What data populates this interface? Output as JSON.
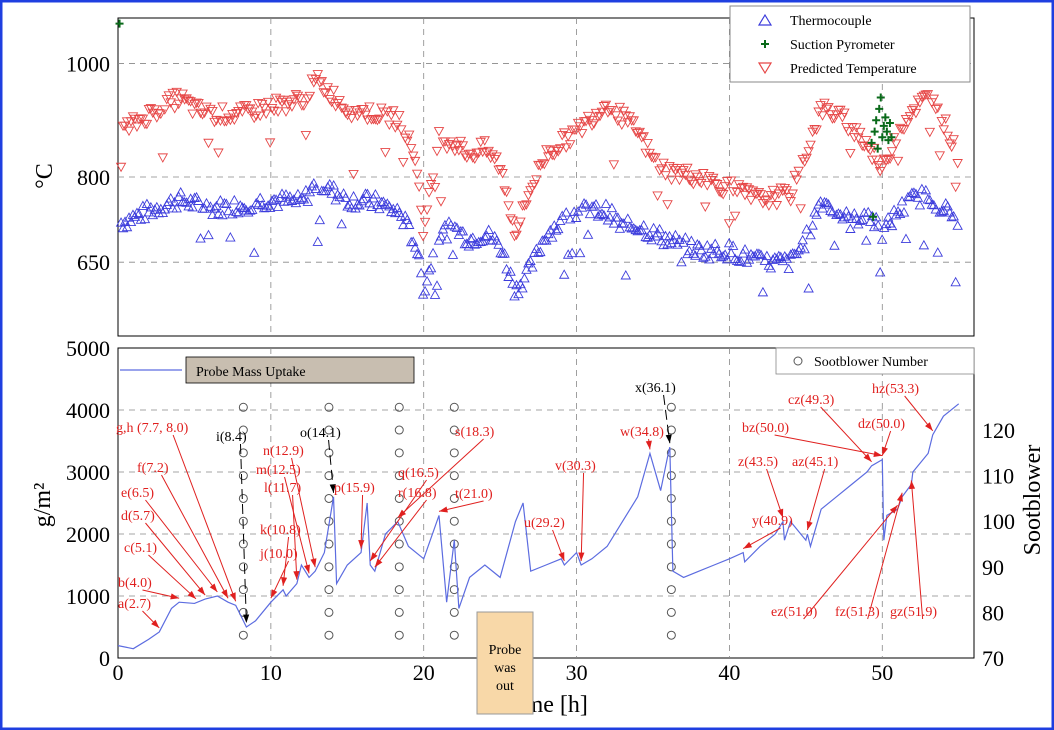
{
  "colors": {
    "frame": "#1f3fe0",
    "thermocouple": "#3c3cdc",
    "pyrometer": "#0a6a1a",
    "predicted": "#e64646",
    "mass": "#5c6ce0",
    "annotation_red": "#e0201f",
    "annotation_black": "#000000",
    "probe_box": "#f8d8a8",
    "legend_box": "#c8beb0",
    "grid": "#888888"
  },
  "chart_data": [
    {
      "type": "scatter",
      "panel": "top",
      "ylabel": "°C",
      "xlim": [
        0,
        56
      ],
      "ylim": [
        520,
        1080
      ],
      "yticks": [
        650,
        800,
        1000
      ],
      "xticks": [
        10,
        20,
        30,
        40,
        50
      ],
      "grid": true,
      "legend_position": "top-right",
      "series": [
        {
          "name": "Thermocouple",
          "marker": "triangle-up",
          "trend": [
            [
              0.2,
              720
            ],
            [
              2,
              740
            ],
            [
              4,
              760
            ],
            [
              6,
              745
            ],
            [
              8,
              750
            ],
            [
              10,
              760
            ],
            [
              12,
              755
            ],
            [
              13,
              790
            ],
            [
              15,
              760
            ],
            [
              17,
              755
            ],
            [
              18.5,
              735
            ],
            [
              19.5,
              680
            ],
            [
              20,
              600
            ],
            [
              21,
              700
            ],
            [
              22,
              710
            ],
            [
              23,
              690
            ],
            [
              24,
              700
            ],
            [
              25,
              680
            ],
            [
              26,
              600
            ],
            [
              27,
              640
            ],
            [
              28,
              700
            ],
            [
              30,
              740
            ],
            [
              32,
              740
            ],
            [
              33,
              710
            ],
            [
              34,
              715
            ],
            [
              35,
              700
            ],
            [
              36,
              690
            ],
            [
              37,
              680
            ],
            [
              38,
              670
            ],
            [
              40,
              670
            ],
            [
              42,
              650
            ],
            [
              44,
              650
            ],
            [
              45,
              690
            ],
            [
              46,
              760
            ],
            [
              47,
              740
            ],
            [
              48,
              720
            ],
            [
              49,
              740
            ],
            [
              50,
              700
            ],
            [
              51,
              740
            ],
            [
              52,
              760
            ],
            [
              53,
              770
            ],
            [
              54,
              745
            ],
            [
              55,
              720
            ]
          ]
        },
        {
          "name": "Suction Pyrometer",
          "marker": "plus",
          "points": [
            [
              0.1,
              1070
            ],
            [
              49.3,
              860
            ],
            [
              49.5,
              880
            ],
            [
              49.6,
              900
            ],
            [
              49.8,
              920
            ],
            [
              49.9,
              940
            ],
            [
              50.0,
              870
            ],
            [
              50.1,
              890
            ],
            [
              50.2,
              905
            ],
            [
              50.3,
              880
            ],
            [
              50.4,
              865
            ],
            [
              50.5,
              895
            ],
            [
              49.7,
              850
            ],
            [
              50.6,
              870
            ],
            [
              49.4,
              730
            ]
          ]
        },
        {
          "name": "Predicted Temperature",
          "marker": "triangle-down",
          "trend": [
            [
              0.2,
              880
            ],
            [
              2,
              910
            ],
            [
              4,
              940
            ],
            [
              5,
              920
            ],
            [
              6,
              910
            ],
            [
              8,
              910
            ],
            [
              10,
              925
            ],
            [
              12,
              935
            ],
            [
              13,
              970
            ],
            [
              15,
              920
            ],
            [
              17,
              910
            ],
            [
              18.5,
              900
            ],
            [
              19.5,
              830
            ],
            [
              20,
              700
            ],
            [
              21,
              870
            ],
            [
              22,
              860
            ],
            [
              23,
              840
            ],
            [
              24,
              850
            ],
            [
              25,
              820
            ],
            [
              26,
              700
            ],
            [
              27,
              780
            ],
            [
              28,
              840
            ],
            [
              30,
              880
            ],
            [
              32,
              930
            ],
            [
              34,
              880
            ],
            [
              35,
              830
            ],
            [
              36,
              810
            ],
            [
              38,
              800
            ],
            [
              40,
              780
            ],
            [
              42,
              760
            ],
            [
              44,
              770
            ],
            [
              45,
              840
            ],
            [
              46,
              920
            ],
            [
              47,
              910
            ],
            [
              48,
              890
            ],
            [
              49,
              860
            ],
            [
              50,
              810
            ],
            [
              51,
              880
            ],
            [
              52,
              920
            ],
            [
              53,
              940
            ],
            [
              54,
              900
            ],
            [
              55,
              830
            ]
          ]
        }
      ]
    },
    {
      "type": "line",
      "panel": "bottom",
      "ylabel": "g/m²",
      "y2label": "Sootblower",
      "xlabel": "Time [h]",
      "xlim": [
        0,
        56
      ],
      "ylim": [
        0,
        5000
      ],
      "y2lim": [
        70,
        138
      ],
      "yticks": [
        0,
        1000,
        2000,
        3000,
        4000,
        5000
      ],
      "y2ticks": [
        70,
        80,
        90,
        100,
        110,
        120
      ],
      "xticks": [
        0,
        10,
        20,
        30,
        40,
        50
      ],
      "grid": true,
      "series": [
        {
          "name": "Probe Mass Uptake",
          "x": [
            0,
            1,
            2,
            2.7,
            3.5,
            4,
            5,
            5.7,
            6.5,
            7.2,
            7.7,
            8,
            8.4,
            9,
            10,
            10.8,
            11,
            11.7,
            12,
            12.5,
            12.9,
            13.5,
            14.1,
            14.3,
            15,
            15.9,
            16.3,
            16.5,
            16.8,
            17.5,
            18.3,
            19,
            20,
            21,
            21.5,
            22,
            22.3,
            23,
            24,
            25,
            26,
            26.5,
            27,
            28,
            29,
            29.2,
            30,
            30.3,
            31,
            32,
            33,
            34,
            34.8,
            35.5,
            36,
            36.1,
            36.3,
            37,
            38,
            39,
            40,
            40.9,
            41,
            42,
            43,
            43.5,
            43.6,
            44,
            45,
            45.1,
            45.3,
            46,
            47,
            48,
            49,
            49.3,
            50,
            50.1,
            50.3,
            51,
            51.3,
            51.9,
            52,
            53,
            53.3,
            54,
            55
          ],
          "values": [
            200,
            150,
            300,
            420,
            800,
            900,
            880,
            950,
            1000,
            900,
            850,
            700,
            500,
            600,
            900,
            1100,
            1000,
            1200,
            1500,
            1300,
            1400,
            1700,
            2600,
            1200,
            1500,
            1700,
            2500,
            1500,
            1400,
            2000,
            2200,
            1800,
            1600,
            2300,
            900,
            1900,
            800,
            1300,
            1500,
            1300,
            2200,
            2500,
            1400,
            1500,
            1600,
            1500,
            1700,
            1500,
            1600,
            1800,
            2200,
            2600,
            3300,
            2700,
            3300,
            3400,
            1400,
            1300,
            1400,
            1500,
            1600,
            1700,
            1550,
            1800,
            2000,
            2200,
            1900,
            2200,
            1900,
            2000,
            1800,
            2400,
            2600,
            2800,
            3000,
            3100,
            3200,
            1900,
            2300,
            2400,
            2600,
            2800,
            3000,
            3300,
            3600,
            3900,
            4100
          ]
        },
        {
          "name": "Sootblower Number",
          "marker": "circle",
          "columns": [
            8.2,
            13.8,
            18.4,
            22.0,
            36.2
          ],
          "y2_values": [
            75,
            80,
            85,
            90,
            95,
            100,
            105,
            110,
            115,
            120,
            125
          ]
        }
      ]
    }
  ],
  "annotations": {
    "a": "a(2.7)",
    "b": "b(4.0)",
    "c": "c(5.1)",
    "d": "d(5.7)",
    "e": "e(6.5)",
    "f": "f(7.2)",
    "gh": "g,h (7.7, 8.0)",
    "i": "i(8.4)",
    "j": "j(10.0)",
    "k": "k(10.8)",
    "l": "l(11.7)",
    "m": "m(12.5)",
    "n": "n(12.9)",
    "o": "o(14.1)",
    "p": "p(15.9)",
    "q": "q(16.5)",
    "r": "r(16.8)",
    "s": "s(18.3)",
    "t": "t(21.0)",
    "u": "u(29.2)",
    "v": "v(30.3)",
    "w": "w(34.8)",
    "x": "x(36.1)",
    "y": "y(40.9)",
    "z": "z(43.5)",
    "az": "az(45.1)",
    "bz": "bz(50.0)",
    "cz": "cz(49.3)",
    "dz": "dz(50.0)",
    "ez": "ez(51.0)",
    "fz": "fz(51.3)",
    "gz": "gz(51.9)",
    "hz": "hz(53.3)"
  },
  "probe_out_label_1": "Probe",
  "probe_out_label_2": "was",
  "probe_out_label_3": "out",
  "top_legend": [
    "Thermocouple",
    "Suction Pyrometer",
    "Predicted Temperature"
  ],
  "bottom_legend_mass": "Probe Mass Uptake",
  "bottom_legend_soot": "Sootblower Number",
  "top_ylabel": "°C",
  "bottom_ylabel": "g/m²",
  "bottom_y2label": "Sootblower",
  "xlabel": "Time [h]"
}
